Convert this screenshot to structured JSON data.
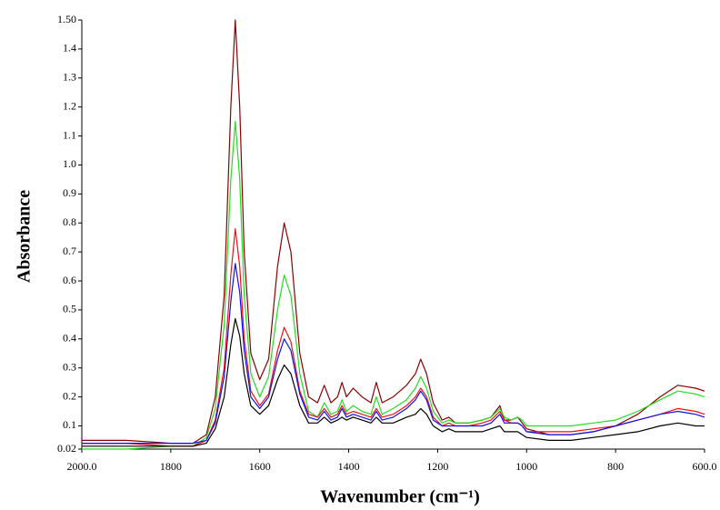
{
  "chart_data": {
    "type": "line",
    "ylabel": "Absorbance",
    "xlabel": "Wavenumber (cm⁻¹)",
    "xlim": [
      2000,
      600
    ],
    "xticks": [
      {
        "value": 2000,
        "label": "2000.0"
      },
      1800,
      1600,
      1400,
      1200,
      1000,
      800,
      {
        "value": 600,
        "label": "600.0"
      }
    ],
    "ylim": [
      0.02,
      1.5
    ],
    "yticks": [
      0.02,
      0.1,
      0.2,
      0.3,
      0.4,
      0.5,
      0.6,
      0.7,
      0.8,
      0.9,
      {
        "value": 1,
        "label": "1.0"
      },
      1.1,
      1.2,
      1.3,
      1.4,
      {
        "value": 1.5,
        "label": "1.50"
      }
    ],
    "x": [
      2000,
      1900,
      1800,
      1750,
      1720,
      1700,
      1680,
      1665,
      1655,
      1645,
      1635,
      1620,
      1600,
      1580,
      1560,
      1545,
      1530,
      1510,
      1490,
      1470,
      1455,
      1440,
      1425,
      1415,
      1405,
      1390,
      1370,
      1350,
      1338,
      1325,
      1300,
      1270,
      1250,
      1238,
      1225,
      1210,
      1190,
      1175,
      1160,
      1130,
      1100,
      1080,
      1060,
      1050,
      1035,
      1020,
      1010,
      1000,
      950,
      900,
      850,
      800,
      750,
      700,
      660,
      620,
      600
    ],
    "series": [
      {
        "color": "#8b0000",
        "values": [
          0.05,
          0.05,
          0.04,
          0.04,
          0.07,
          0.2,
          0.55,
          1.2,
          1.5,
          1.2,
          0.7,
          0.35,
          0.26,
          0.33,
          0.65,
          0.8,
          0.7,
          0.35,
          0.2,
          0.18,
          0.24,
          0.18,
          0.2,
          0.25,
          0.2,
          0.23,
          0.2,
          0.18,
          0.25,
          0.18,
          0.2,
          0.24,
          0.28,
          0.33,
          0.28,
          0.18,
          0.12,
          0.13,
          0.11,
          0.11,
          0.12,
          0.13,
          0.17,
          0.12,
          0.12,
          0.13,
          0.11,
          0.09,
          0.07,
          0.07,
          0.08,
          0.1,
          0.14,
          0.2,
          0.24,
          0.23,
          0.22
        ]
      },
      {
        "color": "#22dd22",
        "values": [
          0.02,
          0.02,
          0.03,
          0.03,
          0.06,
          0.16,
          0.45,
          0.95,
          1.15,
          0.95,
          0.55,
          0.28,
          0.2,
          0.27,
          0.5,
          0.62,
          0.55,
          0.28,
          0.15,
          0.13,
          0.18,
          0.14,
          0.15,
          0.19,
          0.15,
          0.17,
          0.15,
          0.14,
          0.2,
          0.14,
          0.16,
          0.19,
          0.23,
          0.27,
          0.23,
          0.15,
          0.11,
          0.12,
          0.11,
          0.11,
          0.12,
          0.13,
          0.16,
          0.13,
          0.12,
          0.13,
          0.12,
          0.1,
          0.1,
          0.1,
          0.11,
          0.12,
          0.15,
          0.19,
          0.22,
          0.21,
          0.2
        ]
      },
      {
        "color": "#ee1111",
        "values": [
          0.04,
          0.04,
          0.03,
          0.03,
          0.05,
          0.12,
          0.3,
          0.62,
          0.78,
          0.65,
          0.4,
          0.22,
          0.17,
          0.21,
          0.36,
          0.44,
          0.39,
          0.22,
          0.14,
          0.13,
          0.16,
          0.13,
          0.14,
          0.17,
          0.14,
          0.15,
          0.14,
          0.13,
          0.16,
          0.13,
          0.14,
          0.17,
          0.2,
          0.23,
          0.2,
          0.13,
          0.1,
          0.11,
          0.1,
          0.1,
          0.11,
          0.12,
          0.15,
          0.12,
          0.11,
          0.11,
          0.1,
          0.08,
          0.08,
          0.08,
          0.09,
          0.1,
          0.12,
          0.14,
          0.16,
          0.15,
          0.14
        ]
      },
      {
        "color": "#1111ee",
        "values": [
          0.04,
          0.04,
          0.04,
          0.04,
          0.05,
          0.11,
          0.27,
          0.53,
          0.66,
          0.56,
          0.36,
          0.2,
          0.16,
          0.2,
          0.33,
          0.4,
          0.36,
          0.21,
          0.13,
          0.12,
          0.15,
          0.12,
          0.13,
          0.16,
          0.13,
          0.14,
          0.13,
          0.12,
          0.15,
          0.12,
          0.13,
          0.16,
          0.19,
          0.22,
          0.19,
          0.12,
          0.1,
          0.1,
          0.1,
          0.1,
          0.1,
          0.11,
          0.14,
          0.11,
          0.11,
          0.11,
          0.1,
          0.08,
          0.07,
          0.07,
          0.08,
          0.1,
          0.12,
          0.14,
          0.15,
          0.14,
          0.13
        ]
      },
      {
        "color": "#000000",
        "values": [
          0.03,
          0.03,
          0.03,
          0.03,
          0.04,
          0.09,
          0.2,
          0.38,
          0.47,
          0.41,
          0.28,
          0.17,
          0.14,
          0.17,
          0.26,
          0.31,
          0.28,
          0.17,
          0.11,
          0.11,
          0.13,
          0.11,
          0.12,
          0.13,
          0.12,
          0.13,
          0.12,
          0.11,
          0.13,
          0.11,
          0.11,
          0.13,
          0.14,
          0.16,
          0.14,
          0.1,
          0.08,
          0.09,
          0.08,
          0.08,
          0.08,
          0.09,
          0.1,
          0.08,
          0.08,
          0.08,
          0.07,
          0.06,
          0.05,
          0.05,
          0.06,
          0.07,
          0.08,
          0.1,
          0.11,
          0.1,
          0.1
        ]
      }
    ]
  }
}
